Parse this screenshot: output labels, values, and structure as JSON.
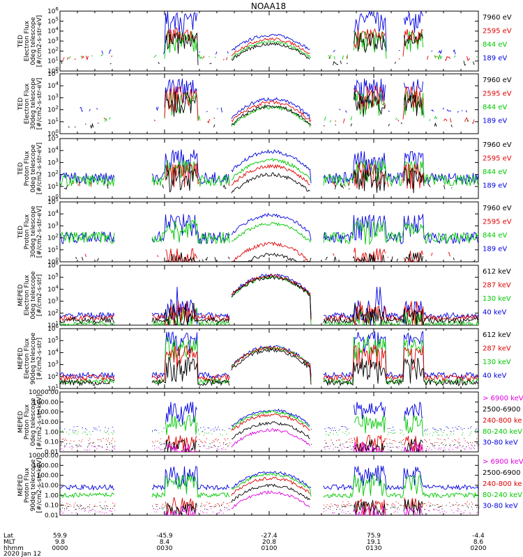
{
  "chart_data": {
    "type": "line",
    "title": "NOAA18",
    "date": "2020 Jan 12",
    "x_rows": {
      "labels": [
        "Lat",
        "MLT",
        "hhmm"
      ],
      "ticks": [
        {
          "values": [
            "59.9",
            "9.8",
            "0000"
          ]
        },
        {
          "values": [
            "-45.9",
            "8.4",
            "0030"
          ]
        },
        {
          "values": [
            "-27.4",
            "20.8",
            "0100"
          ]
        },
        {
          "values": [
            "75.9",
            "19.1",
            "0130"
          ]
        },
        {
          "values": [
            "-4.4",
            "8.6",
            "0200"
          ]
        }
      ]
    },
    "panels": [
      {
        "ylabel": [
          "TED",
          "Electron Flux",
          "0deg telescope",
          "[#/cm2-s-str-eV]"
        ],
        "scale": "log",
        "ylim_exp": [
          0,
          6
        ],
        "legend": [
          {
            "text": "7960 eV",
            "color": "#000000"
          },
          {
            "text": "2595 eV",
            "color": "#e00000"
          },
          {
            "text": "844 eV",
            "color": "#00c800"
          },
          {
            "text": "189 eV",
            "color": "#0000e0"
          }
        ],
        "series": [
          {
            "color": "#0000e0",
            "style": "sparse",
            "quiet": 1.9,
            "active": 5.3,
            "spike": 6.0,
            "dense": 3.6
          },
          {
            "color": "#00c800",
            "style": "sparse",
            "quiet": 1.4,
            "active": 3.4,
            "spike": 4.0,
            "dense": 2.9
          },
          {
            "color": "#e00000",
            "style": "sparse",
            "quiet": 1.3,
            "active": 3.8,
            "spike": 4.2,
            "dense": 3.2
          },
          {
            "color": "#000000",
            "style": "sparse",
            "quiet": 0.8,
            "active": 3.3,
            "spike": 3.6,
            "dense": 2.7
          }
        ]
      },
      {
        "ylabel": [
          "TED",
          "Electron Flux",
          "30deg telescope",
          "[#/cm2-s-str-eV]"
        ],
        "scale": "log",
        "ylim_exp": [
          0,
          5
        ],
        "legend": [
          {
            "text": "7960 eV",
            "color": "#000000"
          },
          {
            "text": "2595 eV",
            "color": "#e00000"
          },
          {
            "text": "844 eV",
            "color": "#00c800"
          },
          {
            "text": "189 eV",
            "color": "#0000e0"
          }
        ],
        "series": [
          {
            "color": "#0000e0",
            "style": "sparse",
            "quiet": 2.0,
            "active": 4.0,
            "spike": 4.5,
            "dense": 2.9
          },
          {
            "color": "#00c800",
            "style": "sparse",
            "quiet": 1.2,
            "active": 3.0,
            "spike": 3.4,
            "dense": 2.2
          },
          {
            "color": "#e00000",
            "style": "sparse",
            "quiet": 1.1,
            "active": 3.4,
            "spike": 3.8,
            "dense": 2.6
          },
          {
            "color": "#000000",
            "style": "sparse",
            "quiet": 0.7,
            "active": 3.0,
            "spike": 3.5,
            "dense": 2.3
          }
        ]
      },
      {
        "ylabel": [
          "TED",
          "Proton Flux",
          "0deg telescope",
          "[#/cm2-s-str-eV]"
        ],
        "scale": "log",
        "ylim_exp": [
          0,
          5
        ],
        "legend": [
          {
            "text": "7960 eV",
            "color": "#000000"
          },
          {
            "text": "2595 eV",
            "color": "#e00000"
          },
          {
            "text": "844 eV",
            "color": "#00c800"
          },
          {
            "text": "189 eV",
            "color": "#0000e0"
          }
        ],
        "series": [
          {
            "color": "#0000e0",
            "style": "noisy",
            "quiet": 1.7,
            "active": 3.5,
            "spike": 3.8,
            "dense": 3.9
          },
          {
            "color": "#00c800",
            "style": "noisy",
            "quiet": 1.5,
            "active": 2.7,
            "spike": 3.1,
            "dense": 3.2
          },
          {
            "color": "#e00000",
            "style": "sparse",
            "quiet": 1.2,
            "active": 2.4,
            "spike": 2.8,
            "dense": 2.7
          },
          {
            "color": "#000000",
            "style": "sparse",
            "quiet": 1.0,
            "active": 2.0,
            "spike": 2.3,
            "dense": 2.0
          }
        ]
      },
      {
        "ylabel": [
          "TED",
          "Proton Flux",
          "30deg telescope",
          "[#/cm2-s-str-eV]"
        ],
        "scale": "log",
        "ylim_exp": [
          0,
          5
        ],
        "legend": [
          {
            "text": "7960 eV",
            "color": "#000000"
          },
          {
            "text": "2595 eV",
            "color": "#e00000"
          },
          {
            "text": "844 eV",
            "color": "#00c800"
          },
          {
            "text": "189 eV",
            "color": "#0000e0"
          }
        ],
        "series": [
          {
            "color": "#0000e0",
            "style": "noisy",
            "quiet": 2.0,
            "active": 3.4,
            "spike": 3.9,
            "dense": 3.9
          },
          {
            "color": "#00c800",
            "style": "noisy",
            "quiet": 2.0,
            "active": 3.0,
            "spike": 3.3,
            "dense": 3.2
          },
          {
            "color": "#e00000",
            "style": "sparse",
            "quiet": 0.6,
            "active": 0.6,
            "spike": 0.6,
            "dense": 1.5
          },
          {
            "color": "#000000",
            "style": "sparse",
            "quiet": 0.2,
            "active": 0.2,
            "spike": 0.2,
            "dense": 0.6
          }
        ]
      },
      {
        "ylabel": [
          "MEPED",
          "Electron Flux",
          "0deg telescope",
          "[#/cm2-s-str]"
        ],
        "scale": "log",
        "ylim_exp": [
          1,
          6
        ],
        "legend": [
          {
            "text": "612 keV",
            "color": "#000000"
          },
          {
            "text": "287 keV",
            "color": "#e00000"
          },
          {
            "text": "130 keV",
            "color": "#00c800"
          },
          {
            "text": "40 keV",
            "color": "#0000e0"
          }
        ],
        "series": [
          {
            "color": "#0000e0",
            "style": "floor",
            "quiet": 1.8,
            "active": 2.6,
            "spike": 4.2,
            "dense": 5.2
          },
          {
            "color": "#00c800",
            "style": "floor",
            "quiet": 1.1,
            "active": 1.6,
            "spike": 2.4,
            "dense": 5.0
          },
          {
            "color": "#e00000",
            "style": "floor",
            "quiet": 1.6,
            "active": 2.1,
            "spike": 3.0,
            "dense": 5.1
          },
          {
            "color": "#000000",
            "style": "floor",
            "quiet": 1.4,
            "active": 1.9,
            "spike": 2.8,
            "dense": 5.0
          }
        ]
      },
      {
        "ylabel": [
          "MEPED",
          "Electron Flux",
          "90deg telescope",
          "[#/cm2-s-str]"
        ],
        "scale": "log",
        "ylim_exp": [
          1,
          6
        ],
        "legend": [
          {
            "text": "612 keV",
            "color": "#000000"
          },
          {
            "text": "287 keV",
            "color": "#e00000"
          },
          {
            "text": "130 keV",
            "color": "#00c800"
          },
          {
            "text": "40 keV",
            "color": "#0000e0"
          }
        ],
        "series": [
          {
            "color": "#0000e0",
            "style": "hump",
            "quiet": 2.1,
            "active": 5.2,
            "spike": 5.5,
            "dense": 4.5
          },
          {
            "color": "#00c800",
            "style": "hump",
            "quiet": 1.6,
            "active": 4.7,
            "spike": 5.0,
            "dense": 4.4
          },
          {
            "color": "#e00000",
            "style": "hump",
            "quiet": 1.9,
            "active": 4.1,
            "spike": 4.4,
            "dense": 4.4
          },
          {
            "color": "#000000",
            "style": "hump",
            "quiet": 1.5,
            "active": 3.0,
            "spike": 3.2,
            "dense": 4.2
          }
        ]
      },
      {
        "ylabel": [
          "MEPED",
          "Proton Flux",
          "0deg telescope",
          "[#/cm2-s-str-keV]"
        ],
        "scale": "log",
        "ylim_exp": [
          -2,
          4
        ],
        "ytick_labels": [
          "0.01",
          "0.10",
          "1.00",
          "10.00",
          "100.00",
          "1000.00",
          "10000.00"
        ],
        "legend": [
          {
            "text": "> 6900 keV",
            "color": "#e000e0"
          },
          {
            "text": "2500-6900",
            "color": "#000000"
          },
          {
            "text": "240-800 ke",
            "color": "#e00000"
          },
          {
            "text": "80-240 keV",
            "color": "#00c800"
          },
          {
            "text": "30-80 keV",
            "color": "#0000e0"
          }
        ],
        "series": [
          {
            "color": "#0000e0",
            "style": "dots",
            "quiet": 0.3,
            "active": 2.3,
            "spike": 3.0,
            "dense": 2.2
          },
          {
            "color": "#00c800",
            "style": "dots",
            "quiet": -0.1,
            "active": 1.1,
            "spike": 1.5,
            "dense": 2.0
          },
          {
            "color": "#e00000",
            "style": "dots",
            "quiet": -0.9,
            "active": -0.9,
            "spike": -0.9,
            "dense": 1.7
          },
          {
            "color": "#000000",
            "style": "dots",
            "quiet": -1.3,
            "active": -1.3,
            "spike": -1.3,
            "dense": 0.9
          },
          {
            "color": "#e000e0",
            "style": "dots",
            "quiet": -1.6,
            "active": -1.6,
            "spike": -1.6,
            "dense": 0.2
          }
        ]
      },
      {
        "ylabel": [
          "MEPED",
          "Proton Flux",
          "90deg telescope",
          "[#/cm2-s-str-keV]"
        ],
        "scale": "log",
        "ylim_exp": [
          -2,
          4
        ],
        "ytick_labels": [
          "0.01",
          "0.10",
          "1.00",
          "10.00",
          "100.00",
          "1000.00",
          "10000.00"
        ],
        "legend": [
          {
            "text": "> 6900 keV",
            "color": "#e000e0"
          },
          {
            "text": "2500-6900",
            "color": "#000000"
          },
          {
            "text": "240-800 ke",
            "color": "#e00000"
          },
          {
            "text": "80-240 keV",
            "color": "#00c800"
          },
          {
            "text": "30-80 keV",
            "color": "#0000e0"
          }
        ],
        "series": [
          {
            "color": "#0000e0",
            "style": "hump",
            "quiet": 0.8,
            "active": 2.4,
            "spike": 2.9,
            "dense": 2.3
          },
          {
            "color": "#00c800",
            "style": "hump",
            "quiet": 0.0,
            "active": 1.5,
            "spike": 1.9,
            "dense": 2.1
          },
          {
            "color": "#e00000",
            "style": "dots",
            "quiet": -0.9,
            "active": -0.8,
            "spike": -0.6,
            "dense": 1.7
          },
          {
            "color": "#000000",
            "style": "dots",
            "quiet": -1.2,
            "active": -1.0,
            "spike": -0.9,
            "dense": 1.0
          },
          {
            "color": "#e000e0",
            "style": "dots",
            "quiet": -1.6,
            "active": -1.6,
            "spike": -1.6,
            "dense": 0.3
          }
        ]
      }
    ]
  }
}
